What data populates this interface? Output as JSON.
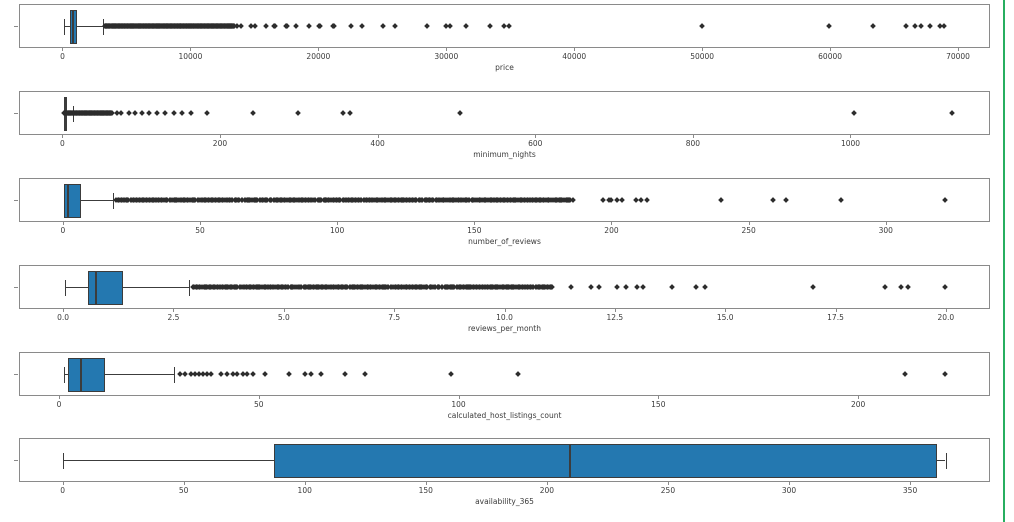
{
  "figure": {
    "background": "#ffffff",
    "border_accent_color": "#27ae60"
  },
  "style": {
    "box_fill": "#2478b0",
    "box_edge": "#3c3c3c",
    "line_color": "#3c3c3c",
    "frame_color": "#8a8a8a",
    "flier_color": "#2d2d2d",
    "tick_text_color": "#3b3b3b"
  },
  "chart_data": [
    {
      "type": "boxplot",
      "xlabel": "price",
      "xlim": [
        -3400,
        72500
      ],
      "ticks": [
        {
          "v": 0,
          "label": "0"
        },
        {
          "v": 10000,
          "label": "10000"
        },
        {
          "v": 20000,
          "label": "20000"
        },
        {
          "v": 30000,
          "label": "30000"
        },
        {
          "v": 40000,
          "label": "40000"
        },
        {
          "v": 50000,
          "label": "50000"
        },
        {
          "v": 60000,
          "label": "60000"
        },
        {
          "v": 70000,
          "label": "70000"
        }
      ],
      "box": {
        "whislo": 80,
        "q1": 500,
        "med": 700,
        "q3": 1100,
        "whishi": 3100
      },
      "outlier_bands": [
        {
          "from": 3200,
          "to": 13400,
          "count": 230
        }
      ],
      "outliers": [
        13600,
        13900,
        14700,
        15000,
        15900,
        16500,
        16600,
        17400,
        17500,
        18200,
        19200,
        20000,
        20100,
        21100,
        21200,
        22500,
        23400,
        25000,
        26000,
        28500,
        30000,
        30300,
        31500,
        33400,
        34500,
        34900,
        50000,
        60000,
        63400,
        66000,
        66700,
        67200,
        67900,
        68700,
        69000
      ]
    },
    {
      "type": "boxplot",
      "xlabel": "minimum_nights",
      "xlim": [
        -55,
        1177
      ],
      "ticks": [
        {
          "v": 0,
          "label": "0"
        },
        {
          "v": 200,
          "label": "200"
        },
        {
          "v": 400,
          "label": "400"
        },
        {
          "v": 600,
          "label": "600"
        },
        {
          "v": 800,
          "label": "800"
        },
        {
          "v": 1000,
          "label": "1000"
        }
      ],
      "box": {
        "whislo": 1,
        "q1": 1,
        "med": 2,
        "q3": 5,
        "whishi": 12
      },
      "outlier_bands": [
        {
          "from": 1,
          "to": 62,
          "count": 85
        }
      ],
      "outliers": [
        68,
        74,
        83,
        91,
        100,
        109,
        119,
        129,
        141,
        151,
        162,
        183,
        241,
        299,
        356,
        365,
        504,
        1005,
        1130
      ]
    },
    {
      "type": "boxplot",
      "xlabel": "number_of_reviews",
      "xlim": [
        -16,
        338
      ],
      "ticks": [
        {
          "v": 0,
          "label": "0"
        },
        {
          "v": 50,
          "label": "50"
        },
        {
          "v": 100,
          "label": "100"
        },
        {
          "v": 150,
          "label": "150"
        },
        {
          "v": 200,
          "label": "200"
        },
        {
          "v": 250,
          "label": "250"
        },
        {
          "v": 300,
          "label": "300"
        }
      ],
      "box": {
        "whislo": 0,
        "q1": 0,
        "med": 1.2,
        "q3": 6.2,
        "whishi": 18
      },
      "outlier_bands": [
        {
          "from": 19,
          "to": 186,
          "count": 330
        }
      ],
      "outliers": [
        197,
        199,
        200,
        202,
        204,
        209,
        211,
        213,
        240,
        259,
        264,
        284,
        322
      ]
    },
    {
      "type": "boxplot",
      "xlabel": "reviews_per_month",
      "xlim": [
        -1,
        21
      ],
      "ticks": [
        {
          "v": 0,
          "label": "0.0"
        },
        {
          "v": 2.5,
          "label": "2.5"
        },
        {
          "v": 5,
          "label": "5.0"
        },
        {
          "v": 7.5,
          "label": "7.5"
        },
        {
          "v": 10,
          "label": "10.0"
        },
        {
          "v": 12.5,
          "label": "12.5"
        },
        {
          "v": 15,
          "label": "15.0"
        },
        {
          "v": 17.5,
          "label": "17.5"
        },
        {
          "v": 20,
          "label": "20.0"
        }
      ],
      "box": {
        "whislo": 0.02,
        "q1": 0.55,
        "med": 0.71,
        "q3": 1.33,
        "whishi": 2.84
      },
      "outlier_bands": [
        {
          "from": 2.9,
          "to": 11.1,
          "count": 270
        }
      ],
      "outliers": [
        11.5,
        11.97,
        12.14,
        12.55,
        12.75,
        13.0,
        13.15,
        13.8,
        14.35,
        14.55,
        17.0,
        18.65,
        19.0,
        19.15,
        20.0
      ]
    },
    {
      "type": "boxplot",
      "xlabel": "calculated_host_listings_count",
      "xlim": [
        -10,
        233
      ],
      "ticks": [
        {
          "v": 0,
          "label": "0"
        },
        {
          "v": 50,
          "label": "50"
        },
        {
          "v": 100,
          "label": "100"
        },
        {
          "v": 150,
          "label": "150"
        },
        {
          "v": 200,
          "label": "200"
        }
      ],
      "box": {
        "whislo": 1,
        "q1": 2,
        "med": 5,
        "q3": 11.2,
        "whishi": 28.5
      },
      "outlier_bands": [],
      "outliers": [
        30,
        31.5,
        33,
        34,
        35,
        36,
        37,
        38,
        40.5,
        42,
        43.5,
        44.5,
        46,
        47,
        48.5,
        51.5,
        57.5,
        61.5,
        63,
        65.5,
        71.5,
        76.5,
        98,
        115,
        212,
        222
      ]
    },
    {
      "type": "boxplot",
      "xlabel": "availability_365",
      "xlim": [
        -18,
        383
      ],
      "ticks": [
        {
          "v": 0,
          "label": "0"
        },
        {
          "v": 50,
          "label": "50"
        },
        {
          "v": 100,
          "label": "100"
        },
        {
          "v": 150,
          "label": "150"
        },
        {
          "v": 200,
          "label": "200"
        },
        {
          "v": 250,
          "label": "250"
        },
        {
          "v": 300,
          "label": "300"
        },
        {
          "v": 350,
          "label": "350"
        }
      ],
      "box": {
        "whislo": 0,
        "q1": 87,
        "med": 209,
        "q3": 361,
        "whishi": 365
      },
      "outlier_bands": [],
      "outliers": []
    }
  ]
}
